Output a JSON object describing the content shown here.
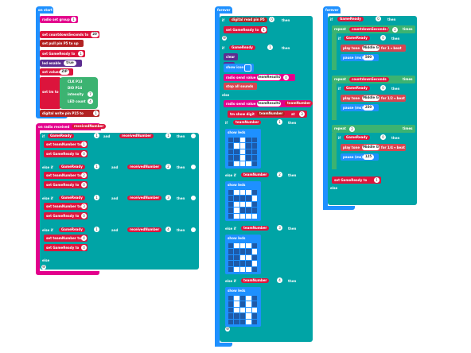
{
  "colors": {
    "basic": "#1e90ff",
    "radio": "#e3008c",
    "vars": "#dc143c",
    "pins": "#b22222",
    "logic": "#00a4a6",
    "green": "#3cb371",
    "music": "#d64550",
    "led": "#5c2d91",
    "ctrl": "#ff8c00"
  },
  "onstart": {
    "title": "on start",
    "radio_set_group": "radio set group",
    "group_val": "1",
    "set_cd": "set  countdownSeconds  to",
    "cd_val": "20",
    "set_pull": "set pull pin  P5  to  up",
    "set_gr": "set  GameReady  to",
    "gr_val": "1",
    "led_enable": "led enable",
    "led_enable_val": "true",
    "set_values": "set values",
    "values_name": "ZIP",
    "clk": "CLK  P13",
    "dio": "DIO  P14",
    "intensity": "intensity",
    "intensity_val": "7",
    "led_count": "LED count",
    "led_count_val": "4",
    "set_to": "set  tm  to",
    "dw": "digital write pin  P15  to",
    "dw_val": "1"
  },
  "onradio": {
    "title": "on radio received",
    "param": "receivedNumber",
    "if": "if",
    "elseif": "else if",
    "else": "else",
    "then": "then",
    "and": "and",
    "gr": "GameReady",
    "rn": "receivedNumber",
    "eq": "=",
    "set_tn": "set  teamNumber  to",
    "set_gr": "set  GameReady  to",
    "conds": [
      {
        "a": "1",
        "b": "1"
      },
      {
        "a": "1",
        "b": "2"
      },
      {
        "a": "1",
        "b": "3"
      },
      {
        "a": "1",
        "b": "4"
      }
    ],
    "tn_vals": [
      "1",
      "2",
      "3",
      "4"
    ],
    "gr_vals": [
      "0",
      "0",
      "0",
      "0"
    ]
  },
  "forever1": {
    "title": "forever",
    "if": "if",
    "then": "then",
    "else": "else",
    "elseif": "else if",
    "dr": "digital read pin  P5",
    "eq": "=",
    "dr_val": "0",
    "set_gr": "set  GameReady  to",
    "set_gr_val": "1",
    "gr": "GameReady",
    "gr_eq": "1",
    "clear": "clear",
    "led": "led",
    "show_icon": "show icon",
    "send_val": "radio send value",
    "send_name": "teamResults",
    "send_num": "0",
    "stop_sounds": "stop all sounds",
    "send_val2": "radio send value",
    "send_name2": "teamResults",
    "eq2": "=",
    "tn": "teamNumber",
    "tm_show": "tm  show digit",
    "tm_show_tn": "teamNumber",
    "tm_at": "at",
    "tm_at_val": "3",
    "if_tn": "teamNumber",
    "tn_vals": [
      "1",
      "2",
      "3",
      "4"
    ],
    "show_leds": "show leds"
  },
  "forever2": {
    "title": "forever",
    "if": "if",
    "then": "then",
    "gr": "GameReady",
    "eq": "=",
    "gr_val": "0",
    "repeat": "repeat",
    "cd": "countdownSeconds",
    "div": "/",
    "div_val": "2",
    "times": "times",
    "play_tone": "play tone",
    "middle_g": "Middle G",
    "for1": "for  1 ▾ beat",
    "pause": "pause (ms)",
    "pause1": "500",
    "set_gr_r1": "0",
    "beat2": "for  1/2 ▾ beat",
    "pause2": "250",
    "repeat3": "repeat",
    "times3": "2",
    "beat3": "for  1/4 ▾ beat",
    "pause3": "125",
    "set_gr": "set  GameReady  to",
    "set_gr_val": "1",
    "else": "else"
  }
}
